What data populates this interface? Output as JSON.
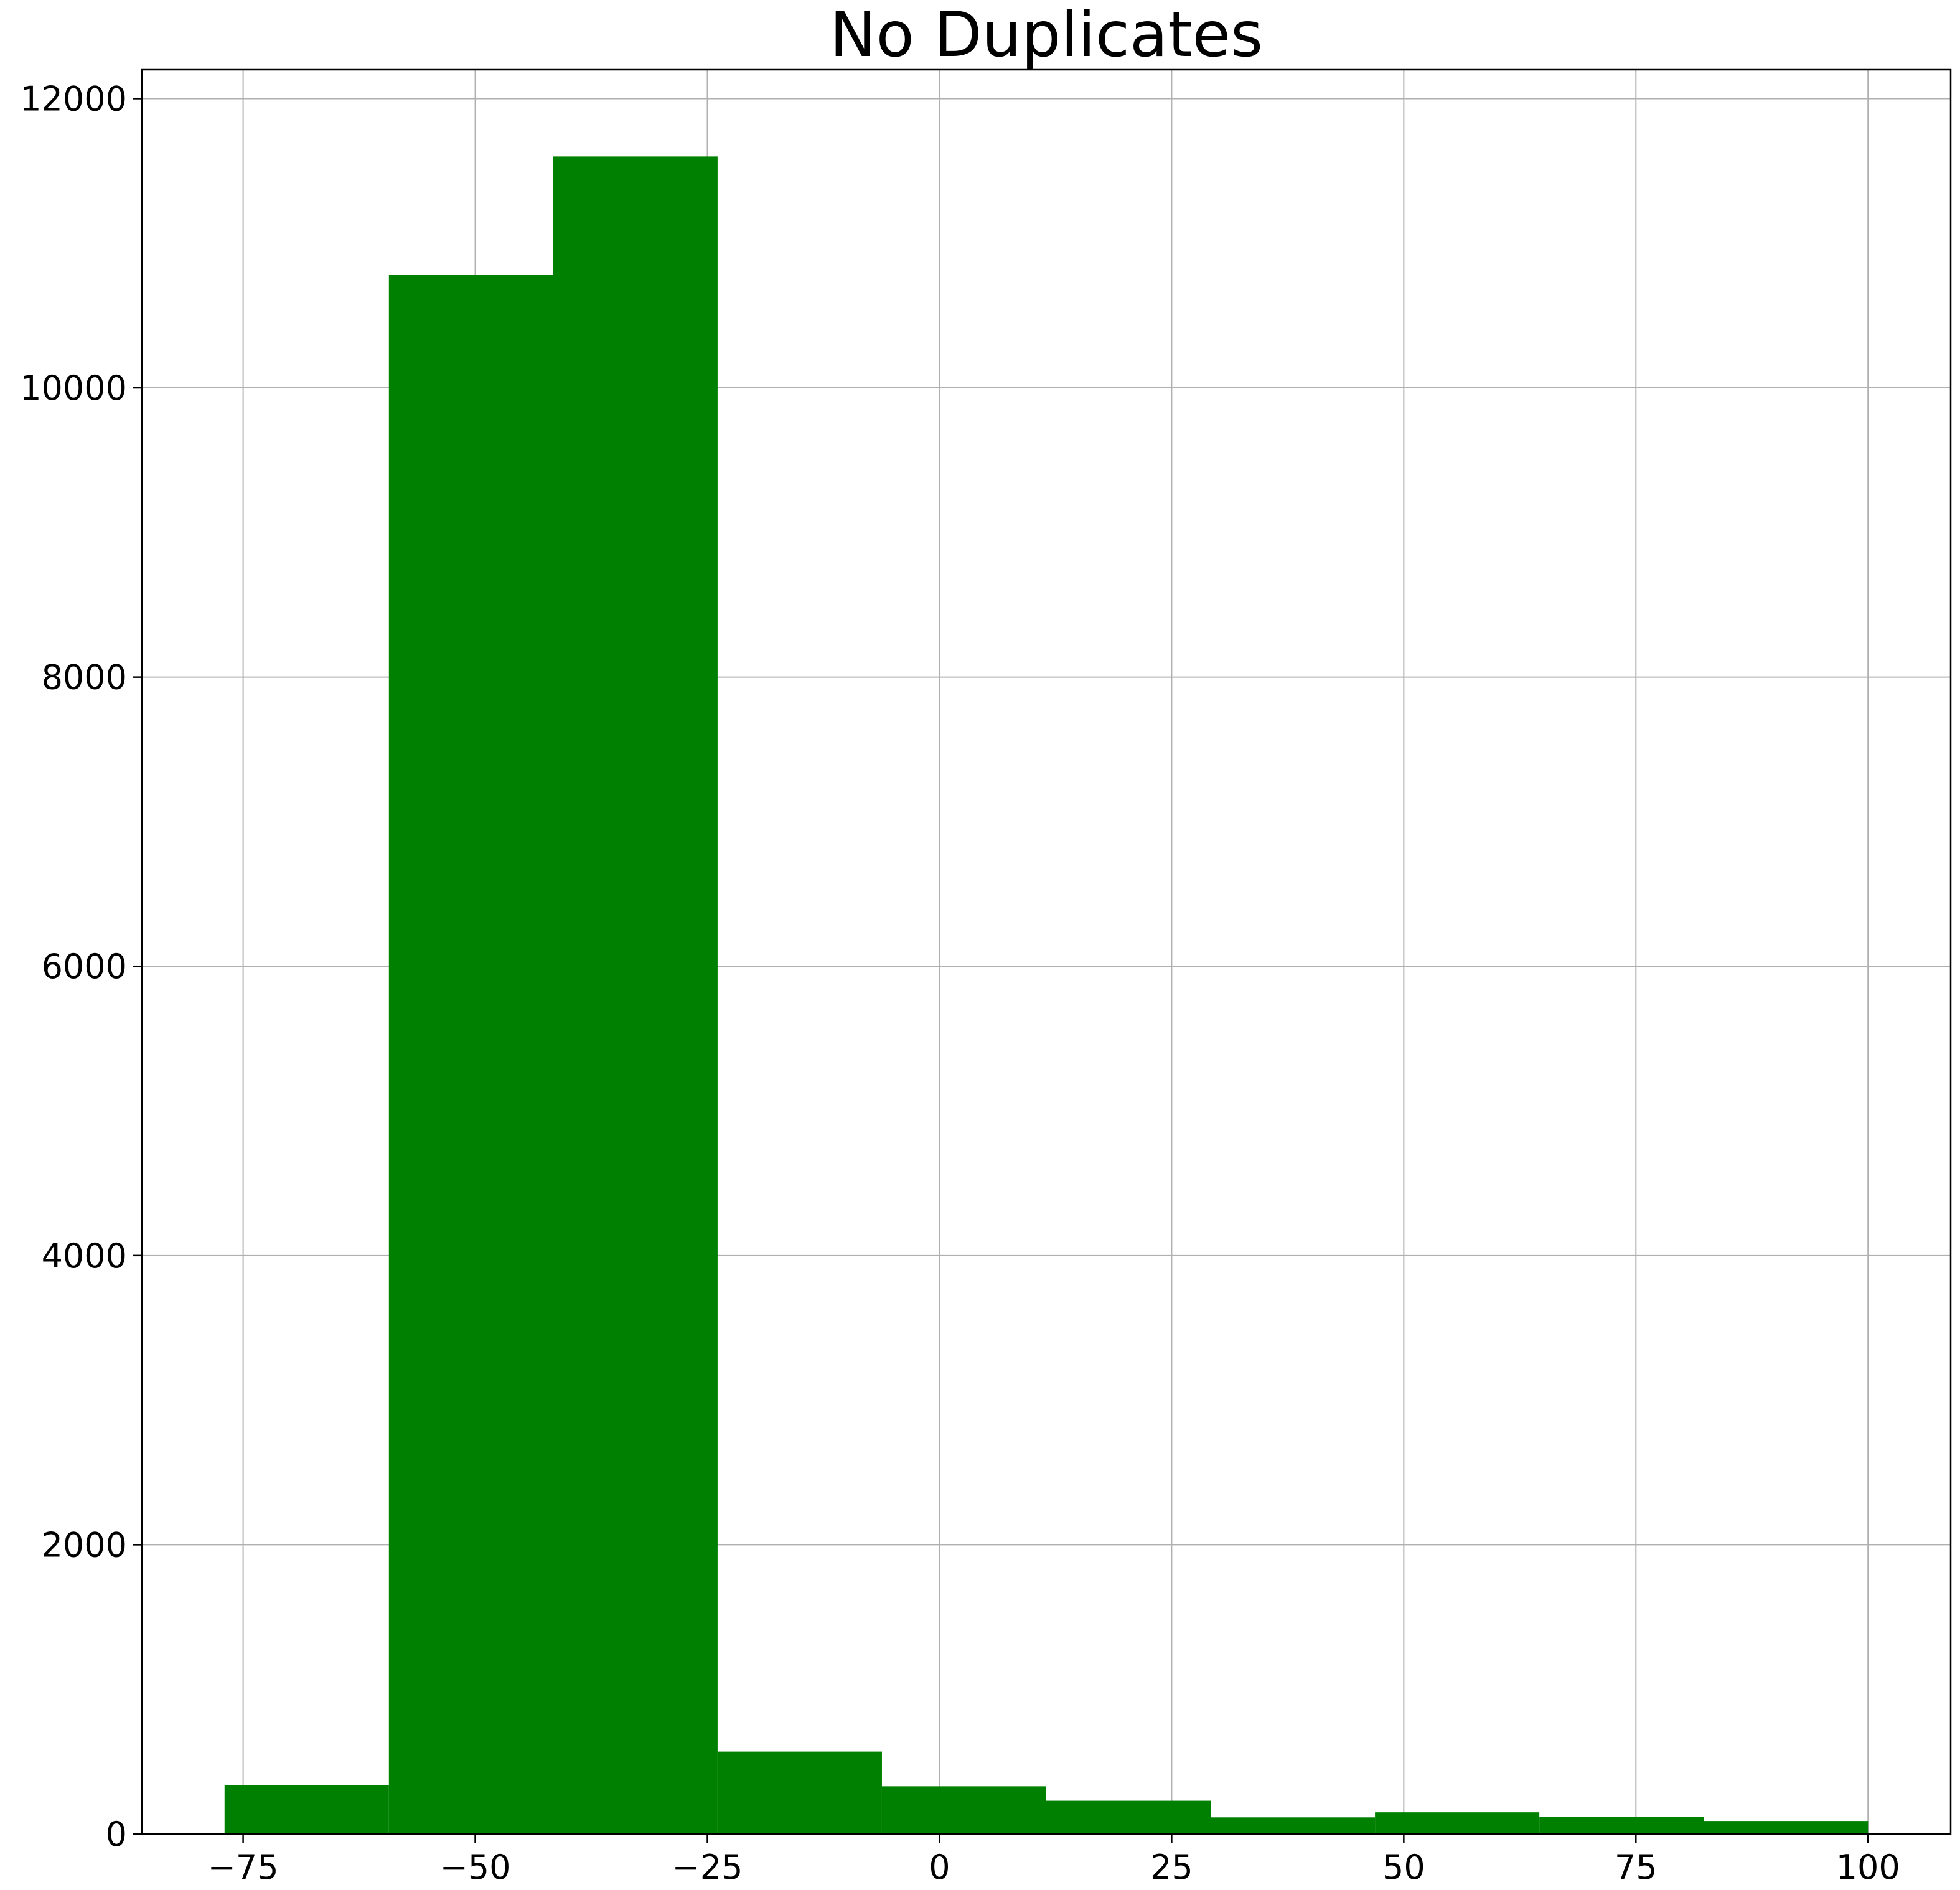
{
  "chart_data": {
    "type": "bar",
    "title": "No Duplicates",
    "xlabel": "",
    "ylabel": "",
    "bar_color": "#008000",
    "grid": true,
    "xlim": [
      -85.9,
      108.9
    ],
    "ylim": [
      0,
      12200
    ],
    "bins": [
      {
        "x0": -77.0,
        "x1": -59.3,
        "count": 340
      },
      {
        "x0": -59.3,
        "x1": -41.6,
        "count": 10780
      },
      {
        "x0": -41.6,
        "x1": -23.9,
        "count": 11600
      },
      {
        "x0": -23.9,
        "x1": -6.2,
        "count": 570
      },
      {
        "x0": -6.2,
        "x1": 11.5,
        "count": 330
      },
      {
        "x0": 11.5,
        "x1": 29.2,
        "count": 230
      },
      {
        "x0": 29.2,
        "x1": 46.9,
        "count": 115
      },
      {
        "x0": 46.9,
        "x1": 64.6,
        "count": 150
      },
      {
        "x0": 64.6,
        "x1": 82.3,
        "count": 120
      },
      {
        "x0": 82.3,
        "x1": 100.0,
        "count": 90
      }
    ],
    "x_ticks": [
      {
        "value": -75,
        "label": "−75"
      },
      {
        "value": -50,
        "label": "−50"
      },
      {
        "value": -25,
        "label": "−25"
      },
      {
        "value": 0,
        "label": "0"
      },
      {
        "value": 25,
        "label": "25"
      },
      {
        "value": 50,
        "label": "50"
      },
      {
        "value": 75,
        "label": "75"
      },
      {
        "value": 100,
        "label": "100"
      }
    ],
    "y_ticks": [
      {
        "value": 0,
        "label": "0"
      },
      {
        "value": 2000,
        "label": "2000"
      },
      {
        "value": 4000,
        "label": "4000"
      },
      {
        "value": 6000,
        "label": "6000"
      },
      {
        "value": 8000,
        "label": "8000"
      },
      {
        "value": 10000,
        "label": "10000"
      },
      {
        "value": 12000,
        "label": "12000"
      }
    ]
  }
}
